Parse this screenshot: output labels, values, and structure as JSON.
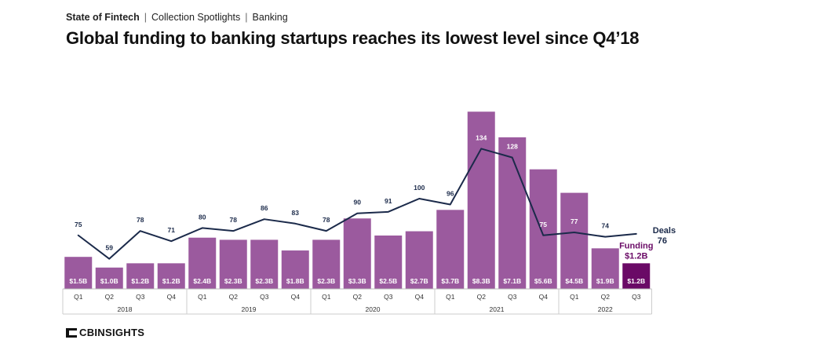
{
  "breadcrumb": {
    "items": [
      "State of Fintech",
      "Collection Spotlights",
      "Banking"
    ]
  },
  "title": "Global funding to banking startups reaches its lowest level since Q4’18",
  "logo": {
    "text": "CBINSIGHTS"
  },
  "colors": {
    "funding_bar": "#9b5a9e",
    "funding_bar_latest": "#6a0a66",
    "deals_line": "#1b2a4a",
    "funding_label": "#6a0a66"
  },
  "chart_data": {
    "type": "bar",
    "categories": [
      "Q1",
      "Q2",
      "Q3",
      "Q4",
      "Q1",
      "Q2",
      "Q3",
      "Q4",
      "Q1",
      "Q2",
      "Q3",
      "Q4",
      "Q1",
      "Q2",
      "Q3",
      "Q4",
      "Q1",
      "Q2",
      "Q3"
    ],
    "years": [
      {
        "label": "2018",
        "quarters": 4
      },
      {
        "label": "2019",
        "quarters": 4
      },
      {
        "label": "2020",
        "quarters": 4
      },
      {
        "label": "2021",
        "quarters": 4
      },
      {
        "label": "2022",
        "quarters": 3
      }
    ],
    "series": [
      {
        "name": "Funding",
        "type": "bar",
        "values": [
          1.5,
          1.0,
          1.2,
          1.2,
          2.4,
          2.3,
          2.3,
          1.8,
          2.3,
          3.3,
          2.5,
          2.7,
          3.7,
          8.3,
          7.1,
          5.6,
          4.5,
          1.9,
          1.2
        ],
        "labels": [
          "$1.5B",
          "$1.0B",
          "$1.2B",
          "$1.2B",
          "$2.4B",
          "$2.3B",
          "$2.3B",
          "$1.8B",
          "$2.3B",
          "$3.3B",
          "$2.5B",
          "$2.7B",
          "$3.7B",
          "$8.3B",
          "$7.1B",
          "$5.6B",
          "$4.5B",
          "$1.9B",
          "$1.2B"
        ]
      },
      {
        "name": "Deals",
        "type": "line",
        "values": [
          75,
          59,
          78,
          71,
          80,
          78,
          86,
          83,
          78,
          90,
          91,
          100,
          96,
          134,
          128,
          75,
          77,
          74,
          76
        ]
      }
    ],
    "annotations": {
      "deals_label": "Deals",
      "deals_latest": "76",
      "funding_label": "Funding",
      "funding_latest": "$1.2B"
    }
  }
}
